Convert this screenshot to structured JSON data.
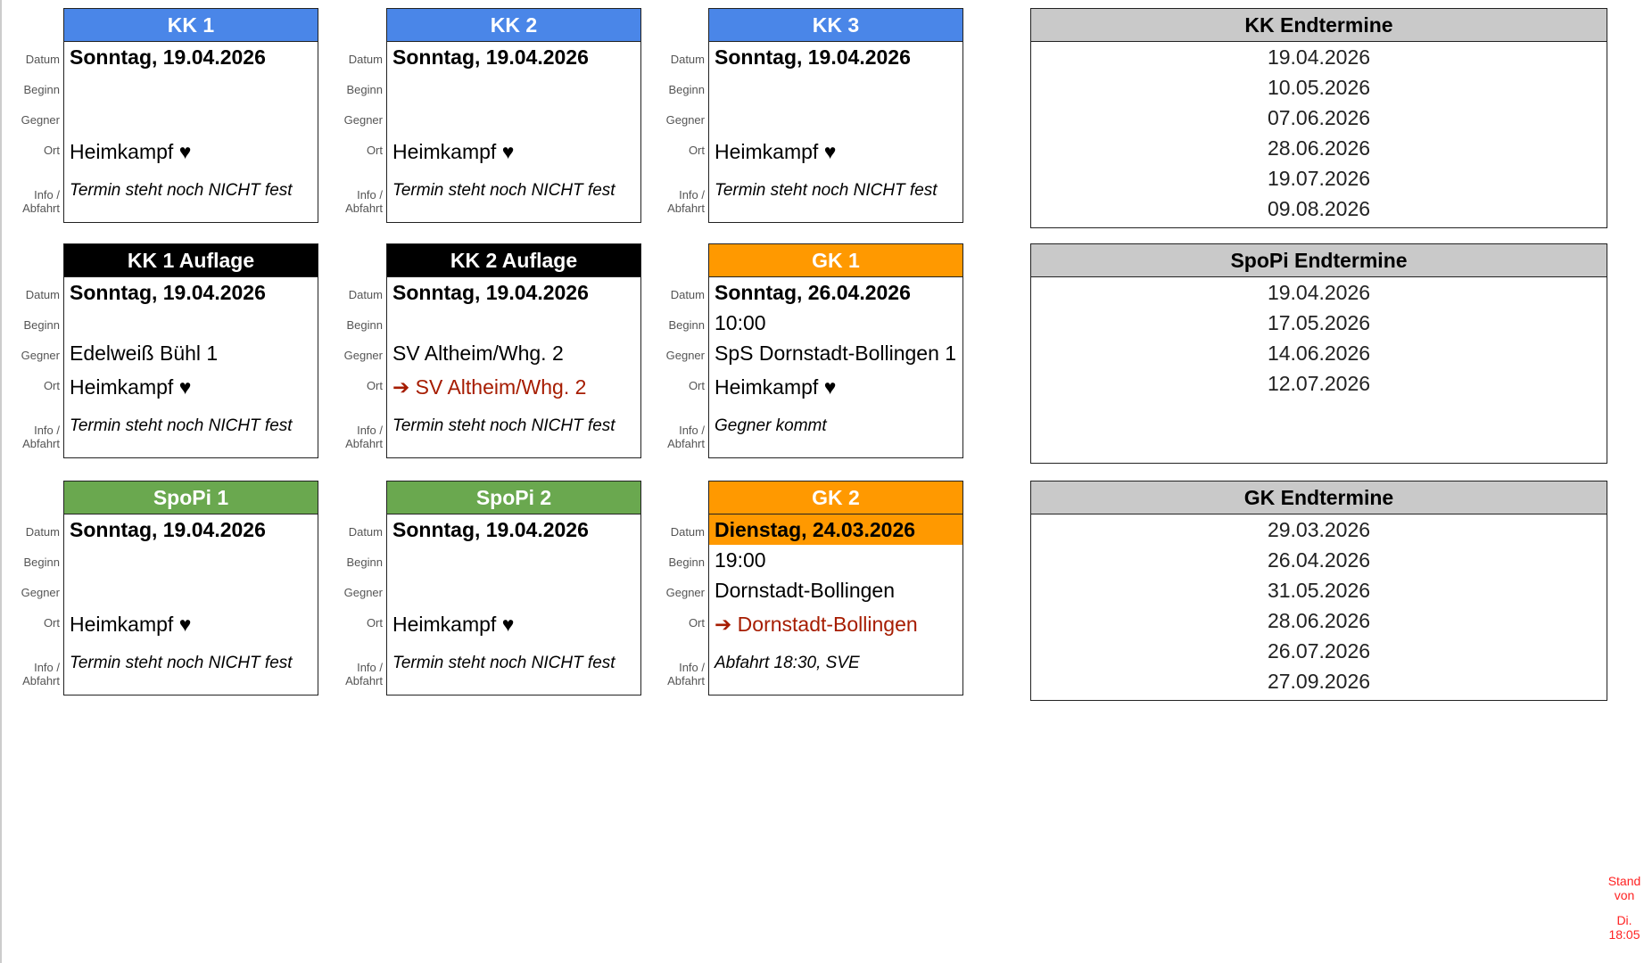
{
  "labels": {
    "datum": "Datum",
    "beginn": "Beginn",
    "gegner": "Gegner",
    "ort": "Ort",
    "info": "Info /",
    "abfahrt": "Abfahrt"
  },
  "cards": [
    {
      "title": "KK 1",
      "color": "#4a86e8",
      "date": "Sonntag, 19.04.2026",
      "beginn": "",
      "gegner": "",
      "ort": "Heimkampf ♥",
      "ort_away": false,
      "info": "Termin steht noch NICHT fest"
    },
    {
      "title": "KK 2",
      "color": "#4a86e8",
      "date": "Sonntag, 19.04.2026",
      "beginn": "",
      "gegner": "",
      "ort": "Heimkampf ♥",
      "ort_away": false,
      "info": "Termin steht noch NICHT fest"
    },
    {
      "title": "KK 3",
      "color": "#4a86e8",
      "date": "Sonntag, 19.04.2026",
      "beginn": "",
      "gegner": "",
      "ort": "Heimkampf ♥",
      "ort_away": false,
      "info": "Termin steht noch NICHT fest"
    },
    {
      "title": "KK 1 Auflage",
      "color": "#000000",
      "date": "Sonntag, 19.04.2026",
      "beginn": "",
      "gegner": "Edelweiß Bühl 1",
      "ort": "Heimkampf ♥",
      "ort_away": false,
      "info": "Termin steht noch NICHT fest"
    },
    {
      "title": "KK 2 Auflage",
      "color": "#000000",
      "date": "Sonntag, 19.04.2026",
      "beginn": "",
      "gegner": "SV Altheim/Whg. 2",
      "ort": "➔ SV Altheim/Whg. 2",
      "ort_away": true,
      "info": "Termin steht noch NICHT fest"
    },
    {
      "title": "GK 1",
      "color": "#ff9900",
      "date": "Sonntag, 26.04.2026",
      "beginn": "10:00",
      "gegner": "SpS Dornstadt-Bollingen 1",
      "ort": "Heimkampf ♥",
      "ort_away": false,
      "info": "Gegner kommt"
    },
    {
      "title": "SpoPi 1",
      "color": "#6aa84f",
      "date": "Sonntag, 19.04.2026",
      "beginn": "",
      "gegner": "",
      "ort": "Heimkampf ♥",
      "ort_away": false,
      "info": "Termin steht noch NICHT fest"
    },
    {
      "title": "SpoPi 2",
      "color": "#6aa84f",
      "date": "Sonntag, 19.04.2026",
      "beginn": "",
      "gegner": "",
      "ort": "Heimkampf ♥",
      "ort_away": false,
      "info": "Termin steht noch NICHT fest"
    },
    {
      "title": "GK 2",
      "color": "#ff9900",
      "date": "Dienstag, 24.03.2026",
      "date_highlight": "#ff9900",
      "beginn": "19:00",
      "gegner": "Dornstadt-Bollingen",
      "ort": "➔ Dornstadt-Bollingen",
      "ort_away": true,
      "info": "Abfahrt 18:30, SVE"
    }
  ],
  "endtermine": [
    {
      "title": "KK Endtermine",
      "dates": [
        "19.04.2026",
        "10.05.2026",
        "07.06.2026",
        "28.06.2026",
        "19.07.2026",
        "09.08.2026"
      ]
    },
    {
      "title": "SpoPi Endtermine",
      "dates": [
        "19.04.2026",
        "17.05.2026",
        "14.06.2026",
        "12.07.2026"
      ]
    },
    {
      "title": "GK Endtermine",
      "dates": [
        "29.03.2026",
        "26.04.2026",
        "31.05.2026",
        "28.06.2026",
        "26.07.2026",
        "27.09.2026"
      ]
    }
  ],
  "stand": {
    "line1": "Stand",
    "line2": "von",
    "line3": "Di.",
    "line4": "18:05"
  }
}
